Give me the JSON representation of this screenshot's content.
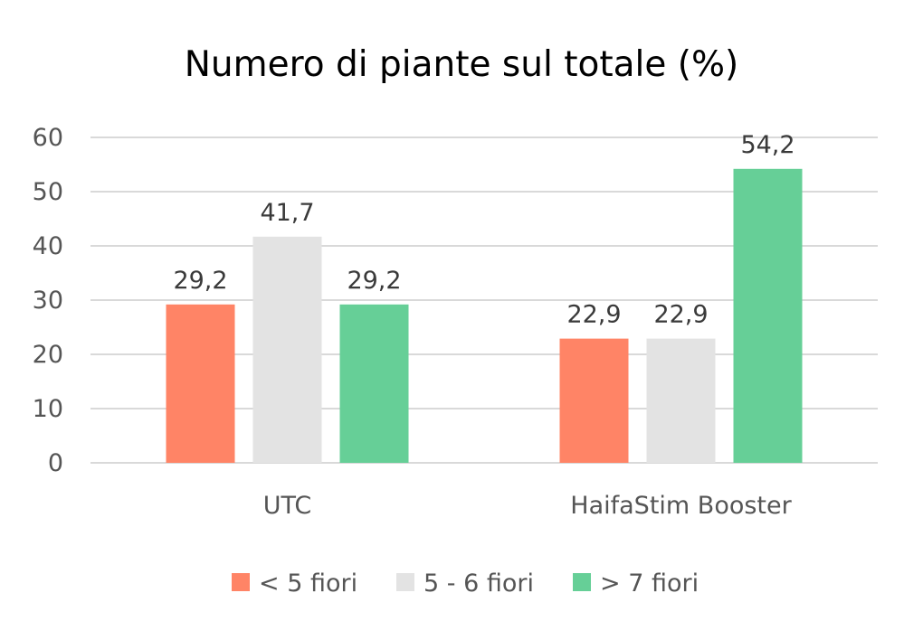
{
  "chart_data": {
    "type": "bar",
    "title": "Numero di piante sul totale (%)",
    "xlabel": "",
    "ylabel": "",
    "categories": [
      "UTC",
      "HaifaStim Booster"
    ],
    "series": [
      {
        "name": "< 5 fiori",
        "color": "#FF8466",
        "values": [
          29.2,
          22.9
        ],
        "labels": [
          "29,2",
          "22,9"
        ]
      },
      {
        "name": "5 - 6 fiori",
        "color": "#E3E3E3",
        "values": [
          41.7,
          22.9
        ],
        "labels": [
          "41,7",
          "22,9"
        ]
      },
      {
        "name": "> 7 fiori",
        "color": "#66CF97",
        "values": [
          29.2,
          54.2
        ],
        "labels": [
          "29,2",
          "54,2"
        ]
      }
    ],
    "ylim": [
      0,
      60
    ],
    "yticks": [
      0,
      10,
      20,
      30,
      40,
      50,
      60
    ],
    "grid": true,
    "legend_position": "bottom"
  }
}
